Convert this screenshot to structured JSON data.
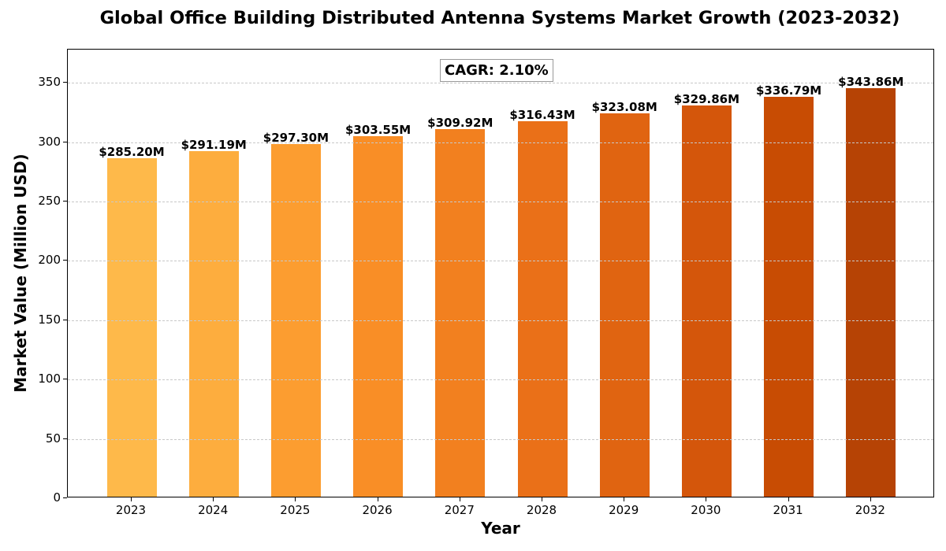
{
  "chart_data": {
    "type": "bar",
    "title": "Global Office Building Distributed Antenna Systems Market Growth (2023-2032)",
    "xlabel": "Year",
    "ylabel": "Market Value (Million USD)",
    "categories": [
      "2023",
      "2024",
      "2025",
      "2026",
      "2027",
      "2028",
      "2029",
      "2030",
      "2031",
      "2032"
    ],
    "values": [
      285.2,
      291.19,
      297.3,
      303.55,
      309.92,
      316.43,
      323.08,
      329.86,
      336.79,
      343.86
    ],
    "value_labels": [
      "$285.20M",
      "$291.19M",
      "$297.30M",
      "$303.55M",
      "$309.92M",
      "$316.43M",
      "$323.08M",
      "$329.86M",
      "$336.79M",
      "$343.86M"
    ],
    "bar_colors": [
      "#feb94a",
      "#fdad3e",
      "#fc9d30",
      "#f98e26",
      "#f2801f",
      "#ea7018",
      "#e06411",
      "#d4560b",
      "#c84c03",
      "#b64305"
    ],
    "ylim": [
      0,
      378
    ],
    "yticks": [
      0,
      50,
      100,
      150,
      200,
      250,
      300,
      350
    ],
    "grid": true,
    "grid_axis": "y",
    "legend": null,
    "annotations": [
      {
        "text": "CAGR: 2.10%",
        "position": "top-center"
      }
    ]
  }
}
